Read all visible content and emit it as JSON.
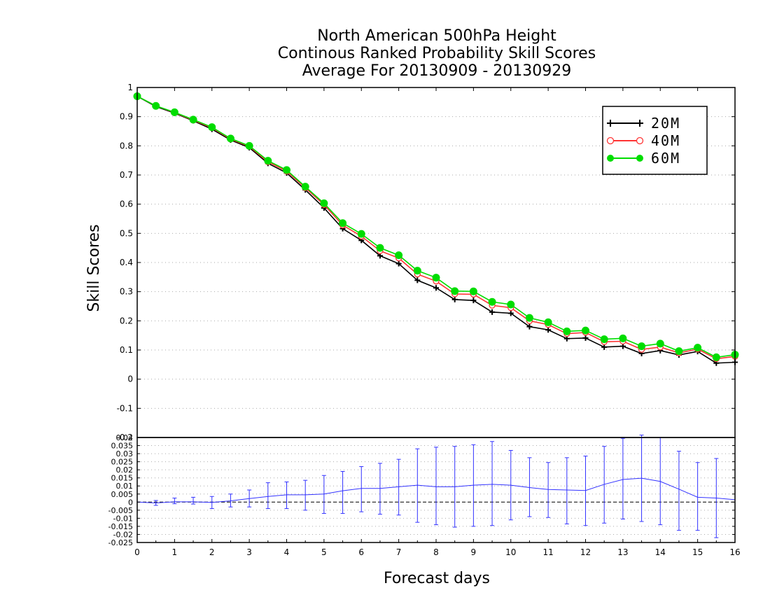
{
  "chart_data": [
    {
      "type": "line",
      "title": [
        "North American 500hPa Height",
        "Continous Ranked Probability Skill Scores",
        "Average For 20130909 - 20130929"
      ],
      "ylabel": "Skill Scores",
      "xlim": [
        0,
        16
      ],
      "ylim": [
        -0.2,
        1
      ],
      "yticks": [
        "1",
        "0.9",
        "0.8",
        "0.7",
        "0.6",
        "0.5",
        "0.4",
        "0.3",
        "0.2",
        "0.1",
        "0",
        "-0.1",
        "-0.2"
      ],
      "ytick_values": [
        1,
        0.9,
        0.8,
        0.7,
        0.6,
        0.5,
        0.4,
        0.3,
        0.2,
        0.1,
        0,
        -0.1,
        -0.2
      ],
      "grid": true,
      "legend_position": "top-right",
      "x": [
        0,
        0.5,
        1,
        1.5,
        2,
        2.5,
        3,
        3.5,
        4,
        4.5,
        5,
        5.5,
        6,
        6.5,
        7,
        7.5,
        8,
        8.5,
        9,
        9.5,
        10,
        10.5,
        11,
        11.5,
        12,
        12.5,
        13,
        13.5,
        14,
        14.5,
        15,
        15.5,
        16
      ],
      "series": [
        {
          "name": "20M",
          "color": "#000000",
          "marker": "plus",
          "values": [
            0.97,
            0.935,
            0.912,
            0.886,
            0.857,
            0.82,
            0.794,
            0.74,
            0.707,
            0.649,
            0.587,
            0.516,
            0.476,
            0.423,
            0.396,
            0.339,
            0.313,
            0.273,
            0.27,
            0.23,
            0.226,
            0.18,
            0.169,
            0.139,
            0.141,
            0.11,
            0.113,
            0.088,
            0.098,
            0.083,
            0.095,
            0.055,
            0.058
          ]
        },
        {
          "name": "40M",
          "color": "#ff3333",
          "marker": "open-circle",
          "values": [
            0.97,
            0.937,
            0.914,
            0.888,
            0.862,
            0.823,
            0.798,
            0.745,
            0.713,
            0.656,
            0.598,
            0.528,
            0.49,
            0.44,
            0.415,
            0.36,
            0.336,
            0.292,
            0.291,
            0.253,
            0.245,
            0.2,
            0.187,
            0.156,
            0.16,
            0.128,
            0.13,
            0.102,
            0.11,
            0.09,
            0.103,
            0.07,
            0.078
          ]
        },
        {
          "name": "60M",
          "color": "#00dd00",
          "marker": "filled-circle",
          "values": [
            0.97,
            0.937,
            0.915,
            0.89,
            0.864,
            0.825,
            0.8,
            0.749,
            0.717,
            0.66,
            0.603,
            0.535,
            0.498,
            0.45,
            0.425,
            0.372,
            0.348,
            0.302,
            0.301,
            0.265,
            0.256,
            0.21,
            0.195,
            0.164,
            0.167,
            0.137,
            0.14,
            0.113,
            0.122,
            0.096,
            0.108,
            0.075,
            0.084
          ]
        }
      ]
    },
    {
      "type": "line",
      "xlabel": "Forecast days",
      "xticks": [
        "0",
        "1",
        "2",
        "3",
        "4",
        "5",
        "6",
        "7",
        "8",
        "9",
        "10",
        "11",
        "12",
        "13",
        "14",
        "15",
        "16"
      ],
      "xlim": [
        0,
        16
      ],
      "ylim": [
        -0.025,
        0.04
      ],
      "yticks": [
        "0.04",
        "0.035",
        "0.03",
        "0.025",
        "0.02",
        "0.015",
        "0.01",
        "0.005",
        "0",
        "-0.005",
        "-0.01",
        "-0.015",
        "-0.02",
        "-0.025"
      ],
      "ytick_values": [
        0.04,
        0.035,
        0.03,
        0.025,
        0.02,
        0.015,
        0.01,
        0.005,
        0,
        -0.005,
        -0.01,
        -0.015,
        -0.02,
        -0.025
      ],
      "grid": true,
      "reference_line": 0,
      "x": [
        0,
        0.5,
        1,
        1.5,
        2,
        2.5,
        3,
        3.5,
        4,
        4.5,
        5,
        5.5,
        6,
        6.5,
        7,
        7.5,
        8,
        8.5,
        9,
        9.5,
        10,
        10.5,
        11,
        11.5,
        12,
        12.5,
        13,
        13.5,
        14,
        14.5,
        15,
        15.5,
        16
      ],
      "series": [
        {
          "color": "#3333ff",
          "values": [
            0.0,
            -0.0005,
            0.0002,
            0.0002,
            -0.0002,
            0.0008,
            0.0022,
            0.0035,
            0.0045,
            0.0045,
            0.005,
            0.007,
            0.0085,
            0.0085,
            0.0095,
            0.0105,
            0.0095,
            0.0095,
            0.0105,
            0.011,
            0.0105,
            0.009,
            0.0078,
            0.0075,
            0.0072,
            0.011,
            0.014,
            0.0148,
            0.0128,
            0.008,
            0.003,
            0.0025,
            0.0015
          ],
          "error_high": [
            0.0,
            0.001,
            0.0025,
            0.003,
            0.0035,
            0.005,
            0.0075,
            0.012,
            0.0125,
            0.0135,
            0.0165,
            0.019,
            0.022,
            0.024,
            0.0265,
            0.033,
            0.034,
            0.0345,
            0.0355,
            0.0375,
            0.032,
            0.0275,
            0.0245,
            0.0275,
            0.0285,
            0.0345,
            0.0395,
            0.0415,
            0.04,
            0.0315,
            0.0245,
            0.027,
            0.0
          ],
          "error_low": [
            0.0,
            -0.002,
            -0.001,
            -0.0012,
            -0.004,
            -0.003,
            -0.003,
            -0.004,
            -0.004,
            -0.005,
            -0.007,
            -0.007,
            -0.006,
            -0.0075,
            -0.008,
            -0.0125,
            -0.014,
            -0.0155,
            -0.015,
            -0.0145,
            -0.011,
            -0.009,
            -0.0095,
            -0.0135,
            -0.0145,
            -0.013,
            -0.0105,
            -0.012,
            -0.014,
            -0.0175,
            -0.0175,
            -0.022,
            0.0
          ]
        }
      ]
    }
  ]
}
